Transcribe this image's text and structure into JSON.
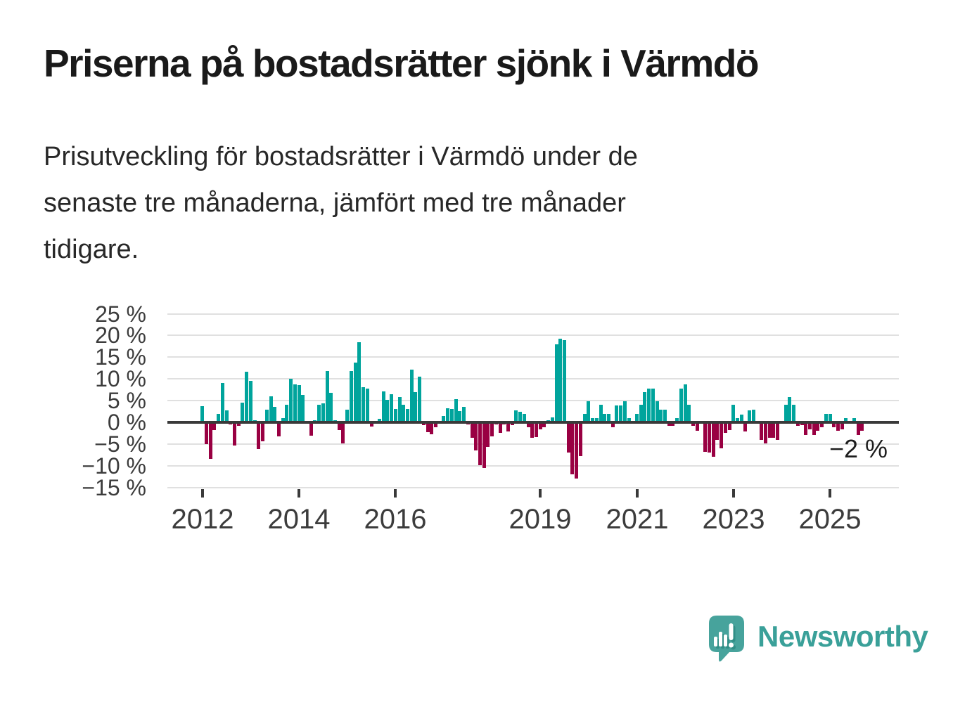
{
  "page": {
    "title": "Priserna på bostadsrätter sjönk i Värmdö",
    "subtitle_lines": [
      "Prisutveckling för bostadsrätter i Värmdö under de",
      "senaste tre månaderna, jämfört med tre månader",
      "tidigare."
    ]
  },
  "branding": {
    "wordmark": "Newsworthy",
    "logo_icon": "speech-bubble-with-bar-chart-and-exclamation"
  },
  "colors": {
    "positive": "#00a49c",
    "negative": "#990042",
    "gridline": "#e0e0e0",
    "zero_line": "#3a3a3a",
    "axis_text": "#3c3c3c",
    "title_text": "#1a1a1a",
    "annotation_text": "#1d1d1d",
    "brand_teal": "#3aa099",
    "logo_bubble": "#47a39c",
    "logo_shadow": "#2f8d86"
  },
  "chart_data": {
    "type": "bar",
    "unit": "%",
    "period": "monthly",
    "start_month": "2012-01",
    "end_month": "2025-09",
    "grid": true,
    "ylim": [
      -15,
      25
    ],
    "y_ticks": [
      25,
      20,
      15,
      10,
      5,
      0,
      -5,
      -10,
      -15
    ],
    "y_tick_labels": [
      "25 %",
      "20 %",
      "15 %",
      "10 %",
      "5 %",
      "0 %",
      "−5 %",
      "−10 %",
      "−15 %"
    ],
    "x_ticks": [
      {
        "label": "2012",
        "month_index": 0
      },
      {
        "label": "2014",
        "month_index": 24
      },
      {
        "label": "2016",
        "month_index": 48
      },
      {
        "label": "2019",
        "month_index": 84
      },
      {
        "label": "2021",
        "month_index": 108
      },
      {
        "label": "2023",
        "month_index": 132
      },
      {
        "label": "2025",
        "month_index": 156
      }
    ],
    "values": [
      3.8,
      -5.0,
      -8.4,
      -1.8,
      1.9,
      9.0,
      2.8,
      -0.5,
      -5.4,
      -0.8,
      4.5,
      11.7,
      9.5,
      0.5,
      -6.2,
      -4.4,
      2.9,
      6.0,
      3.5,
      -3.3,
      0.9,
      4.1,
      10.1,
      8.8,
      8.5,
      6.3,
      -0.3,
      -3.1,
      0.5,
      4.1,
      4.4,
      11.8,
      6.8,
      0.5,
      -1.7,
      -4.9,
      2.9,
      11.8,
      13.7,
      18.5,
      8.1,
      7.8,
      -0.9,
      0.3,
      0.8,
      7.2,
      5.1,
      6.5,
      3.1,
      5.9,
      4.1,
      3.1,
      12.2,
      6.9,
      10.5,
      -0.6,
      -2.3,
      -2.7,
      -1.1,
      0.2,
      1.5,
      3.2,
      3.0,
      5.3,
      2.6,
      3.5,
      -0.5,
      -3.5,
      -6.4,
      -9.8,
      -10.5,
      -5.6,
      -3.2,
      -0.5,
      -2.4,
      -0.5,
      -2.1,
      -0.7,
      2.7,
      2.4,
      2.0,
      -1.2,
      -3.5,
      -3.4,
      -1.6,
      -1.1,
      0.5,
      1.1,
      17.9,
      19.3,
      19.0,
      -6.9,
      -12.0,
      -12.9,
      -7.8,
      1.9,
      4.8,
      1.0,
      1.0,
      4.0,
      1.9,
      2.0,
      -1.1,
      3.9,
      3.9,
      4.8,
      1.0,
      0.2,
      1.9,
      4.0,
      6.9,
      7.8,
      7.8,
      4.8,
      2.9,
      2.9,
      -0.8,
      -0.8,
      1.0,
      7.8,
      8.8,
      4.0,
      -0.8,
      -1.9,
      0.1,
      -6.8,
      -6.9,
      -7.9,
      -4.0,
      -6.0,
      -2.5,
      -1.8,
      4.0,
      1.0,
      1.7,
      -2.1,
      2.8,
      2.9,
      0.1,
      -4.0,
      -4.9,
      -3.5,
      -3.6,
      -4.0,
      0.3,
      4.0,
      5.9,
      4.0,
      -0.8,
      -0.7,
      -2.9,
      -1.6,
      -2.9,
      -1.9,
      -1.1,
      1.9,
      1.9,
      -1.1,
      -1.9,
      -1.6,
      1.0,
      -0.4,
      1.0,
      -2.9,
      -2.0
    ],
    "last_value_label": "−2 %"
  }
}
